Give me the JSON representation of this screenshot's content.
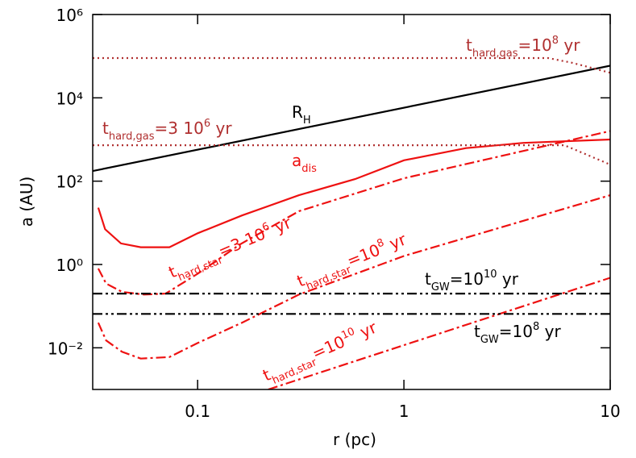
{
  "chart_data": {
    "type": "line",
    "xlabel": "r (pc)",
    "ylabel": "a (AU)",
    "log_x": true,
    "log_y": true,
    "xlim": [
      0.031,
      10
    ],
    "ylim": [
      0.001,
      1000000
    ],
    "xticks": [
      0.1,
      1,
      10
    ],
    "yticks": [
      {
        "value": 0.01,
        "label": "10⁻²"
      },
      {
        "value": 1,
        "label": "10⁰"
      },
      {
        "value": 100,
        "label": "10²"
      },
      {
        "value": 10000,
        "label": "10⁴"
      },
      {
        "value": 1000000,
        "label": "10⁶"
      }
    ],
    "series": [
      {
        "color": "#000000",
        "style": "solid",
        "x": [
          0.031,
          10
        ],
        "values": [
          175,
          59000
        ]
      },
      {
        "color": "#ee1111",
        "style": "solid",
        "x": [
          0.033,
          0.0356,
          0.0425,
          0.053,
          0.073,
          0.1,
          0.164,
          0.31,
          0.58,
          1,
          2,
          3.8,
          10
        ],
        "values": [
          23,
          7,
          3.2,
          2.6,
          2.6,
          5.6,
          15,
          46,
          112,
          316,
          620,
          830,
          1000
        ]
      },
      {
        "color": "#ee1111",
        "style": "dashdot",
        "x": [
          0.033,
          0.036,
          0.043,
          0.055,
          0.07,
          0.1,
          0.16,
          0.31,
          1,
          10
        ],
        "values": [
          0.8,
          0.35,
          0.22,
          0.19,
          0.2,
          0.6,
          3,
          19,
          117,
          1600
        ]
      },
      {
        "color": "#ee1111",
        "style": "dashdot",
        "x": [
          0.033,
          0.036,
          0.043,
          0.053,
          0.073,
          0.1,
          0.164,
          0.31,
          1,
          10
        ],
        "values": [
          0.04,
          0.015,
          0.008,
          0.0055,
          0.006,
          0.013,
          0.04,
          0.19,
          1.6,
          46
        ]
      },
      {
        "color": "#ee1111",
        "style": "dashdot",
        "x": [
          0.22,
          10
        ],
        "values": [
          0.001,
          0.48
        ]
      },
      {
        "color": "#000000",
        "style": "dashdotdot",
        "x": [
          0.031,
          10
        ],
        "values": [
          0.2,
          0.2
        ]
      },
      {
        "color": "#000000",
        "style": "dashdotdot",
        "x": [
          0.031,
          10
        ],
        "values": [
          0.065,
          0.065
        ]
      },
      {
        "color": "#b03030",
        "style": "dotted",
        "x": [
          0.031,
          5,
          6.5,
          10
        ],
        "values": [
          90000,
          90000,
          70000,
          40000
        ]
      },
      {
        "color": "#b03030",
        "style": "dotted",
        "x": [
          0.031,
          6,
          10
        ],
        "values": [
          730,
          730,
          250
        ]
      }
    ],
    "annotations": [
      {
        "color": "#b03030",
        "parts": [
          {
            "t": "t"
          },
          {
            "sub": "hard,gas"
          },
          {
            "t": "=10"
          },
          {
            "sup": "8"
          },
          {
            "t": " yr"
          }
        ]
      },
      {
        "color": "#000000",
        "parts": [
          {
            "t": "R"
          },
          {
            "sub": "H"
          }
        ]
      },
      {
        "color": "#b03030",
        "parts": [
          {
            "t": "t"
          },
          {
            "sub": "hard,gas"
          },
          {
            "t": "=3  10"
          },
          {
            "sup": "6"
          },
          {
            "t": " yr"
          }
        ]
      },
      {
        "color": "#ee1111",
        "parts": [
          {
            "t": "a"
          },
          {
            "sub": "dis"
          }
        ]
      },
      {
        "color": "#ee1111",
        "parts": [
          {
            "t": "t"
          },
          {
            "sub": "hard,star"
          },
          {
            "t": "=3  10"
          },
          {
            "sup": "6"
          },
          {
            "t": " yr"
          }
        ]
      },
      {
        "color": "#ee1111",
        "parts": [
          {
            "t": "t"
          },
          {
            "sub": "hard,star"
          },
          {
            "t": "=10"
          },
          {
            "sup": "8"
          },
          {
            "t": "  yr"
          }
        ]
      },
      {
        "color": "#000000",
        "parts": [
          {
            "t": "t"
          },
          {
            "sub": "GW"
          },
          {
            "t": "=10"
          },
          {
            "sup": "10"
          },
          {
            "t": "  yr"
          }
        ]
      },
      {
        "color": "#ee1111",
        "parts": [
          {
            "t": "t"
          },
          {
            "sub": "hard,star"
          },
          {
            "t": "=10"
          },
          {
            "sup": "10"
          },
          {
            "t": "  yr"
          }
        ]
      },
      {
        "color": "#000000",
        "parts": [
          {
            "t": "t"
          },
          {
            "sub": "GW"
          },
          {
            "t": "=10"
          },
          {
            "sup": "8"
          },
          {
            "t": "  yr"
          }
        ]
      }
    ]
  }
}
